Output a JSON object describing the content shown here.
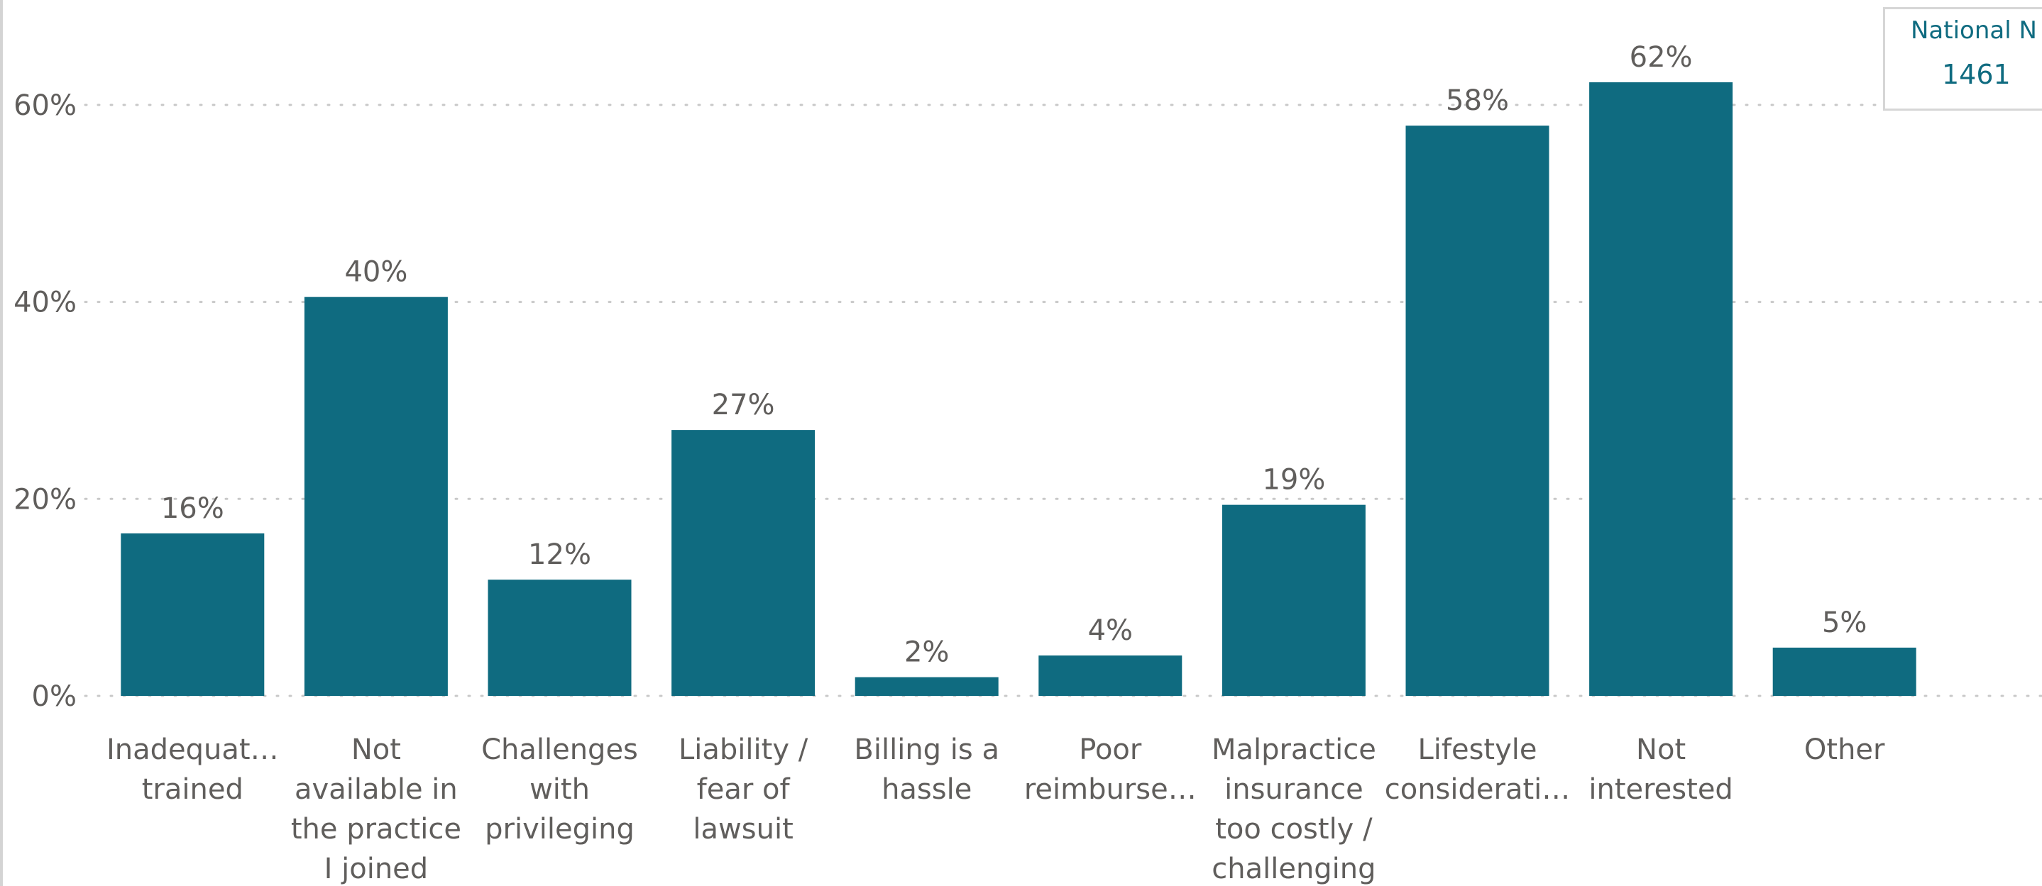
{
  "chart_data": {
    "type": "bar",
    "categories": [
      [
        "Inadequat…",
        "trained"
      ],
      [
        "Not",
        "available in",
        "the practice",
        "I joined"
      ],
      [
        "Challenges",
        "with",
        "privileging"
      ],
      [
        "Liability /",
        "fear of",
        "lawsuit"
      ],
      [
        "Billing is a",
        "hassle"
      ],
      [
        "Poor",
        "reimburse…"
      ],
      [
        "Malpractice",
        "insurance",
        "too costly /",
        "challenging"
      ],
      [
        "Lifestyle",
        "considerati…"
      ],
      [
        "Not",
        "interested"
      ],
      [
        "Other"
      ]
    ],
    "values": [
      16.5,
      40.5,
      11.8,
      27,
      1.9,
      4.1,
      19.4,
      57.9,
      62.3,
      4.9
    ],
    "data_labels": [
      "16%",
      "40%",
      "12%",
      "27%",
      "2%",
      "4%",
      "19%",
      "58%",
      "62%",
      "5%"
    ],
    "yticks": [
      "0%",
      "20%",
      "40%",
      "60%"
    ],
    "ylim": [
      0,
      62.3
    ],
    "bar_color": "#0f6b80",
    "grid": true
  },
  "card": {
    "label": "National N",
    "value": "1461"
  }
}
